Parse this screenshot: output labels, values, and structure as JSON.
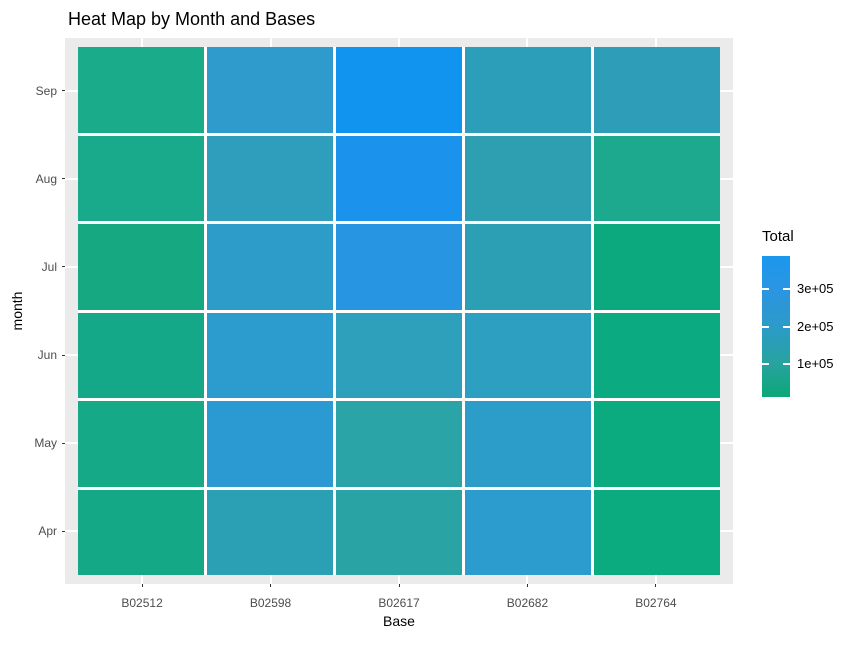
{
  "styles": {
    "background": "#FFFFFF",
    "panel_bg": "#EBEBEB",
    "gridline": "#FFFFFF",
    "axis_text": "#4D4D4D",
    "tick_color": "#333333",
    "text_color": "#000000"
  },
  "chart_data": {
    "type": "heatmap",
    "title": "Heat Map by Month and Bases",
    "xlabel": "Base",
    "ylabel": "month",
    "x_categories": [
      "B02512",
      "B02598",
      "B02617",
      "B02682",
      "B02764"
    ],
    "y_categories": [
      "Sep",
      "Aug",
      "Jul",
      "Jun",
      "May",
      "Apr"
    ],
    "legend": {
      "title": "Total",
      "ticks": [
        {
          "label": "3e+05",
          "value": 300000
        },
        {
          "label": "2e+05",
          "value": 200000
        },
        {
          "label": "1e+05",
          "value": 100000
        }
      ],
      "range": [
        10000,
        390000
      ],
      "low_color": "#0DA778",
      "high_color": "#1C97EE",
      "gradient_stops": [
        {
          "pos": 0.0,
          "color": "#1C97EE"
        },
        {
          "pos": 0.23,
          "color": "#2A95E2"
        },
        {
          "pos": 0.49,
          "color": "#2C9ACA"
        },
        {
          "pos": 0.76,
          "color": "#27A3A0"
        },
        {
          "pos": 1.0,
          "color": "#0DA778"
        }
      ],
      "position": "right"
    },
    "grid": true,
    "series": [
      {
        "month": "Sep",
        "values": [
          36000,
          240000,
          390000,
          170000,
          190000
        ],
        "colors": [
          "#1AAB8A",
          "#2F9ACC",
          "#1193F0",
          "#2D9EBA",
          "#2E9EB8"
        ]
      },
      {
        "month": "Aug",
        "values": [
          35000,
          220000,
          355000,
          165000,
          36000
        ],
        "colors": [
          "#19AA8B",
          "#2F9EBC",
          "#1B93EC",
          "#2D9FB1",
          "#1CA98E"
        ]
      },
      {
        "month": "Jul",
        "values": [
          31000,
          240000,
          310000,
          170000,
          10000
        ],
        "colors": [
          "#16A981",
          "#2E9CC8",
          "#2795E2",
          "#2D9FB5",
          "#0CA97E"
        ]
      },
      {
        "month": "Jun",
        "values": [
          33000,
          245000,
          185000,
          190000,
          11000
        ],
        "colors": [
          "#14A888",
          "#2C9CCE",
          "#2EA0BB",
          "#2D9FC0",
          "#0CAA80"
        ]
      },
      {
        "month": "May",
        "values": [
          36800,
          260000,
          123000,
          223000,
          9500
        ],
        "colors": [
          "#16A987",
          "#2B9AD3",
          "#2BA4A8",
          "#2C9CC9",
          "#0BAA7F"
        ]
      },
      {
        "month": "Apr",
        "values": [
          35500,
          183000,
          108000,
          228000,
          10000
        ],
        "colors": [
          "#15A886",
          "#2BA0B4",
          "#2AA3A4",
          "#2C9CCE",
          "#0CAA7F"
        ]
      }
    ]
  }
}
